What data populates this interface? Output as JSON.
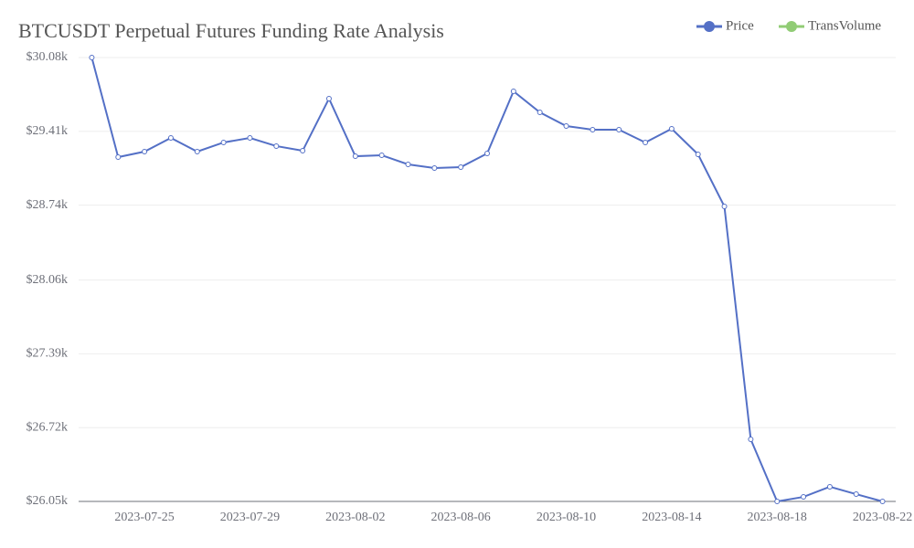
{
  "chart_data": {
    "type": "line",
    "title": "BTCUSDT Perpetual Futures Funding Rate Analysis",
    "categories": [
      null,
      null,
      "2023-07-25",
      null,
      null,
      null,
      "2023-07-29",
      null,
      null,
      null,
      "2023-08-02",
      null,
      null,
      null,
      "2023-08-06",
      null,
      null,
      null,
      "2023-08-10",
      null,
      null,
      null,
      "2023-08-14",
      null,
      null,
      null,
      "2023-08-18",
      null,
      null,
      null,
      "2023-08-22"
    ],
    "series": [
      {
        "name": "Price",
        "color": "#5470c6",
        "values": [
          30080,
          29176,
          29226,
          29350,
          29226,
          29309,
          29350,
          29276,
          29234,
          29707,
          29184,
          29193,
          29110,
          29077,
          29085,
          29209,
          29773,
          29582,
          29458,
          29425,
          29425,
          29309,
          29433,
          29201,
          28728,
          26614,
          26050,
          26091,
          26183,
          26116,
          26050
        ]
      },
      {
        "name": "TransVolume",
        "color": "#91cc75",
        "values": [
          null,
          null,
          null,
          null,
          null,
          null,
          null,
          null,
          null,
          null,
          null,
          null,
          null,
          null,
          null,
          null,
          null,
          null,
          null,
          null,
          null,
          null,
          null,
          null,
          null,
          null,
          null,
          null,
          null,
          null,
          null
        ]
      }
    ],
    "ylim": [
      26050,
      30080
    ],
    "yticks": [
      {
        "value": 26050,
        "label": "$26.05k"
      },
      {
        "value": 26720,
        "label": "$26.72k"
      },
      {
        "value": 27390,
        "label": "$27.39k"
      },
      {
        "value": 28060,
        "label": "$28.06k"
      },
      {
        "value": 28740,
        "label": "$28.74k"
      },
      {
        "value": 29410,
        "label": "$29.41k"
      },
      {
        "value": 30080,
        "label": "$30.08k"
      }
    ],
    "grid": true
  }
}
